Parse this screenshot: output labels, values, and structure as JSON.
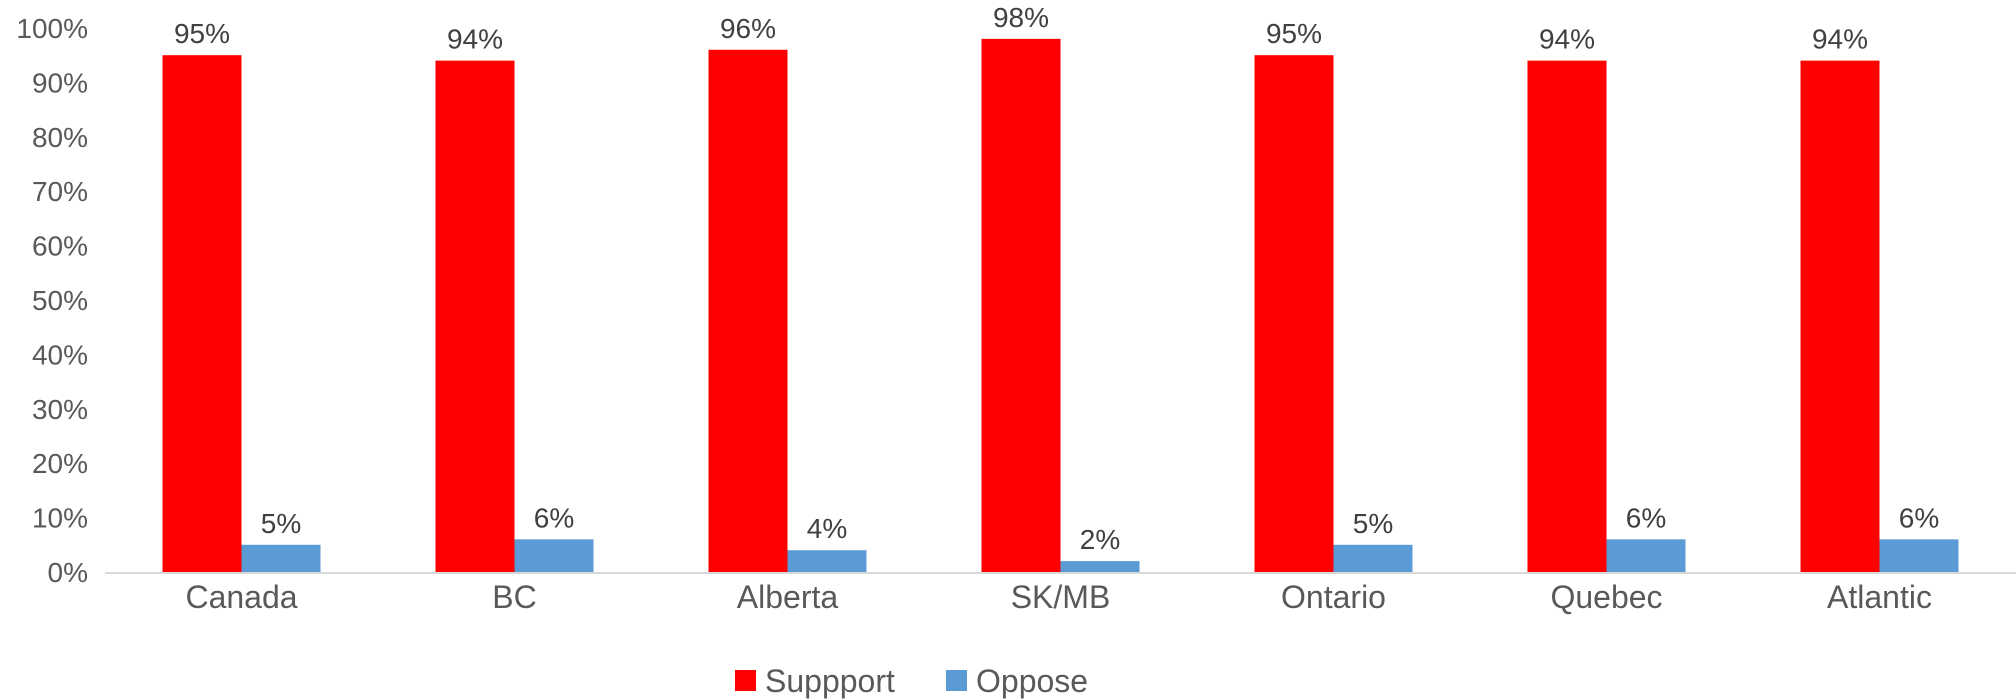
{
  "chart_data": {
    "type": "bar",
    "categories": [
      "Canada",
      "BC",
      "Alberta",
      "SK/MB",
      "Ontario",
      "Quebec",
      "Atlantic"
    ],
    "series": [
      {
        "name": "Suppport",
        "values": [
          95,
          94,
          96,
          98,
          95,
          94,
          94
        ],
        "color": "#ff0000"
      },
      {
        "name": "Oppose",
        "values": [
          5,
          6,
          4,
          2,
          5,
          6,
          6
        ],
        "color": "#5b9bd5"
      }
    ],
    "y_ticks": [
      "0%",
      "10%",
      "20%",
      "30%",
      "40%",
      "50%",
      "60%",
      "70%",
      "80%",
      "90%",
      "100%"
    ],
    "ylim": [
      0,
      100
    ],
    "value_suffix": "%",
    "grid": false,
    "legend_position": "bottom"
  }
}
